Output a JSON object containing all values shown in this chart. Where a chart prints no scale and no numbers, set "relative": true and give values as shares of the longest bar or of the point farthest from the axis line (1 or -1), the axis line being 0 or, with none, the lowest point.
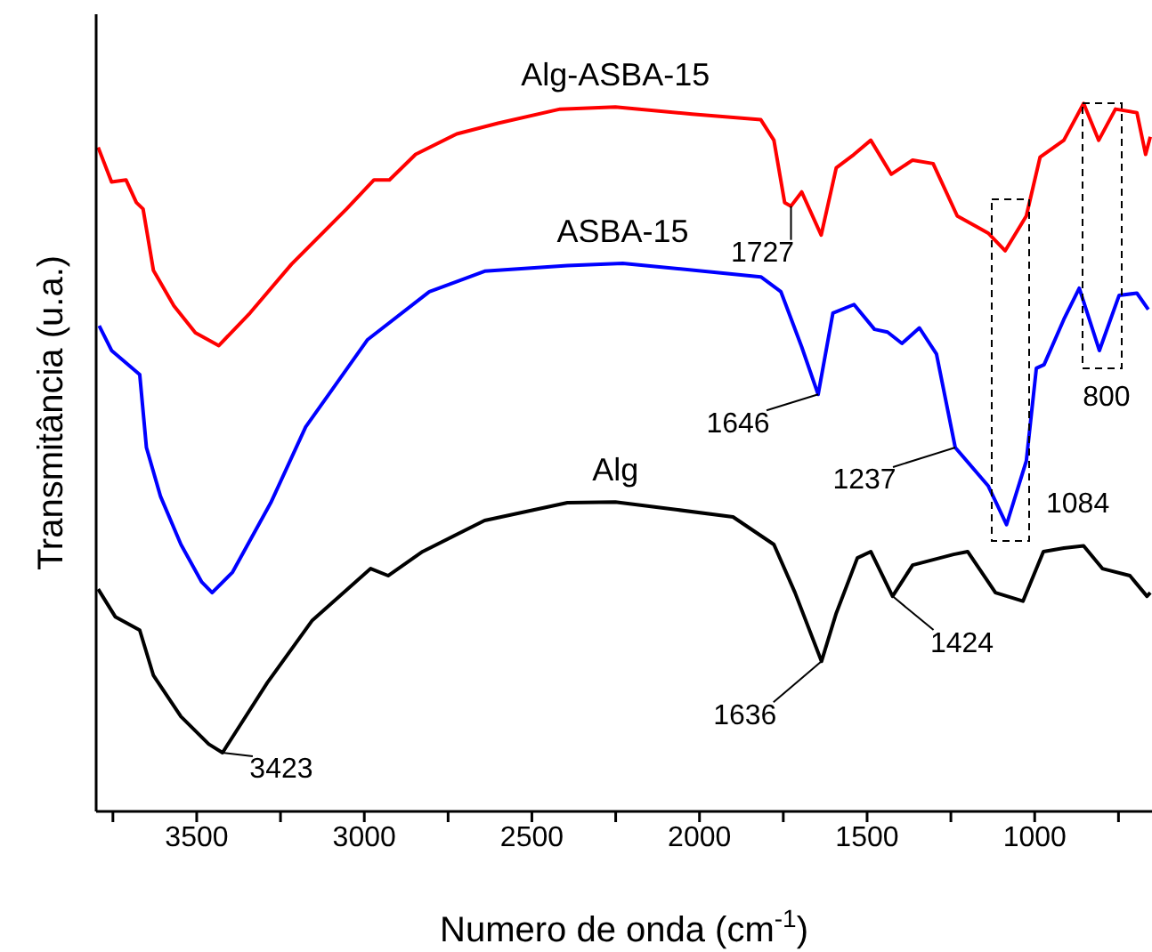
{
  "chart_data": {
    "type": "line",
    "relative": true,
    "xlabel": "Numero de onda (cm$^{-1}$)",
    "ylabel": "Transmitância (u.a.)",
    "xlim": [
      3800,
      650
    ],
    "xticks": [
      {
        "value": 3750,
        "label": null
      },
      3500,
      {
        "value": 3250,
        "label": null
      },
      3000,
      {
        "value": 2750,
        "label": null
      },
      2500,
      {
        "value": 2250,
        "label": null
      },
      2000,
      {
        "value": 1750,
        "label": null
      },
      1500,
      {
        "value": 1250,
        "label": null
      },
      1000,
      {
        "value": 750,
        "label": null
      }
    ],
    "legend": false,
    "grid": false,
    "marker": "none",
    "line_style": "solid",
    "series": [
      {
        "name": "Alg-ASBA-15",
        "color": "#ff0000",
        "x": [
          3794,
          3754,
          3711,
          3680,
          3660,
          3629,
          3568,
          3504,
          3434,
          3341,
          3217,
          3053,
          2971,
          2925,
          2847,
          2724,
          2601,
          2416,
          2251,
          2022,
          1817,
          1778,
          1746,
          1727,
          1695,
          1637,
          1592,
          1539,
          1489,
          1428,
          1364,
          1303,
          1231,
          1139,
          1088,
          1025,
          984,
          913,
          854,
          809,
          759,
          695,
          669,
          655
        ],
        "values": [
          0.938,
          0.889,
          0.892,
          0.86,
          0.851,
          0.764,
          0.714,
          0.676,
          0.658,
          0.704,
          0.773,
          0.851,
          0.892,
          0.892,
          0.928,
          0.957,
          0.972,
          0.992,
          0.995,
          0.985,
          0.977,
          0.948,
          0.86,
          0.855,
          0.875,
          0.814,
          0.909,
          0.928,
          0.948,
          0.9,
          0.92,
          0.915,
          0.841,
          0.817,
          0.792,
          0.841,
          0.924,
          0.948,
          1,
          0.948,
          0.992,
          0.987,
          0.928,
          0.953
        ]
      },
      {
        "name": "ASBA-15",
        "color": "#0000ff",
        "x": [
          3791,
          3754,
          3670,
          3650,
          3608,
          3547,
          3485,
          3454,
          3393,
          3279,
          3175,
          3094,
          2991,
          2806,
          2641,
          2394,
          2229,
          1943,
          1817,
          1757,
          1695,
          1646,
          1602,
          1539,
          1478,
          1439,
          1396,
          1344,
          1293,
          1237,
          1139,
          1084,
          1025,
          995,
          972,
          913,
          867,
          807,
          748,
          695,
          661
        ],
        "values": [
          0.686,
          0.651,
          0.617,
          0.514,
          0.445,
          0.377,
          0.324,
          0.309,
          0.338,
          0.436,
          0.543,
          0.597,
          0.666,
          0.734,
          0.763,
          0.771,
          0.774,
          0.761,
          0.755,
          0.734,
          0.656,
          0.589,
          0.704,
          0.716,
          0.681,
          0.677,
          0.661,
          0.683,
          0.646,
          0.514,
          0.46,
          0.405,
          0.495,
          0.626,
          0.631,
          0.695,
          0.739,
          0.651,
          0.729,
          0.732,
          0.709
        ]
      },
      {
        "name": "Alg",
        "color": "#000000",
        "x": [
          3794,
          3743,
          3670,
          3629,
          3547,
          3464,
          3423,
          3289,
          3155,
          2981,
          2929,
          2826,
          2641,
          2394,
          2251,
          2065,
          1900,
          1778,
          1715,
          1636,
          1592,
          1529,
          1489,
          1424,
          1364,
          1242,
          1200,
          1117,
          1035,
          974,
          913,
          854,
          798,
          716,
          665,
          655
        ],
        "values": [
          0.314,
          0.275,
          0.256,
          0.192,
          0.134,
          0.095,
          0.083,
          0.182,
          0.27,
          0.343,
          0.333,
          0.367,
          0.411,
          0.436,
          0.437,
          0.426,
          0.416,
          0.377,
          0.309,
          0.212,
          0.28,
          0.358,
          0.367,
          0.304,
          0.348,
          0.363,
          0.367,
          0.309,
          0.297,
          0.367,
          0.372,
          0.375,
          0.343,
          0.333,
          0.304,
          0.309
        ]
      }
    ],
    "annotations": [
      {
        "text": "1727",
        "x": 1727,
        "y": 0.855
      },
      {
        "text": "1646",
        "x": 1646,
        "y": 0.589
      },
      {
        "text": "1237",
        "x": 1237,
        "y": 0.514
      },
      {
        "text": "1084",
        "x": 1084,
        "y": 0.405
      },
      {
        "text": "800",
        "x": 807,
        "y": 0.651
      },
      {
        "text": "1636",
        "x": 1636,
        "y": 0.212
      },
      {
        "text": "1424",
        "x": 1424,
        "y": 0.304
      },
      {
        "text": "3423",
        "x": 3423,
        "y": 0.083
      }
    ]
  }
}
